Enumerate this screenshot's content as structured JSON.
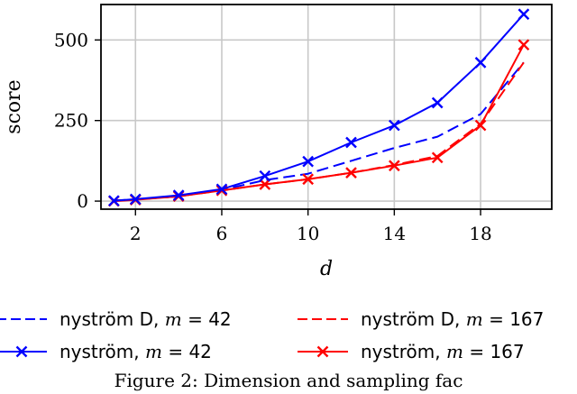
{
  "chart_data": {
    "type": "line",
    "xlabel": "d",
    "ylabel": "score",
    "xlim": [
      0.4,
      21.3
    ],
    "ylim": [
      -25,
      610
    ],
    "xticks": [
      2,
      6,
      10,
      14,
      18
    ],
    "yticks": [
      0,
      250,
      500
    ],
    "grid": true,
    "legend_position": "below",
    "series": [
      {
        "name": "nyström D, m = 42",
        "color": "#0000ff",
        "style": "dashed",
        "marker": "none",
        "x": [
          1,
          2,
          4,
          6,
          8,
          10,
          12,
          14,
          16,
          18,
          20
        ],
        "y": [
          2,
          5,
          15,
          35,
          65,
          85,
          125,
          165,
          200,
          270,
          430
        ]
      },
      {
        "name": "nyström, m = 42",
        "color": "#0000ff",
        "style": "solid",
        "marker": "x",
        "x": [
          1,
          2,
          4,
          6,
          8,
          10,
          12,
          14,
          16,
          18,
          20
        ],
        "y": [
          1,
          6,
          18,
          37,
          78,
          123,
          182,
          235,
          305,
          430,
          580
        ]
      },
      {
        "name": "nyström D, m = 167",
        "color": "#ff0000",
        "style": "dashed",
        "marker": "none",
        "x": [
          1,
          2,
          4,
          6,
          8,
          10,
          12,
          14,
          16,
          18,
          20
        ],
        "y": [
          1,
          5,
          15,
          33,
          52,
          68,
          88,
          112,
          140,
          240,
          430
        ]
      },
      {
        "name": "nyström, m = 167",
        "color": "#ff0000",
        "style": "solid",
        "marker": "x",
        "x": [
          1,
          2,
          4,
          6,
          8,
          10,
          12,
          14,
          16,
          18,
          20
        ],
        "y": [
          0,
          4,
          15,
          33,
          52,
          68,
          88,
          110,
          135,
          235,
          485
        ]
      }
    ]
  },
  "legend": [
    {
      "prefix": "nyström D, ",
      "var": "m",
      "suffix": " = 42",
      "color": "#0000ff",
      "style": "dashed",
      "marker": "none"
    },
    {
      "prefix": "nyström D, ",
      "var": "m",
      "suffix": " = 167",
      "color": "#ff0000",
      "style": "dashed",
      "marker": "none"
    },
    {
      "prefix": "nyström, ",
      "var": "m",
      "suffix": " = 42",
      "color": "#0000ff",
      "style": "solid",
      "marker": "x"
    },
    {
      "prefix": "nyström, ",
      "var": "m",
      "suffix": " = 167",
      "color": "#ff0000",
      "style": "solid",
      "marker": "x"
    }
  ],
  "caption": "Figure 2: Dimension and sampling fac"
}
